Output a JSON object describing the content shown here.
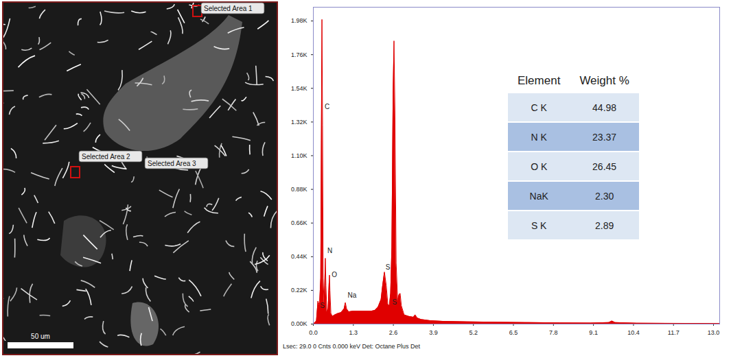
{
  "image": {
    "selected_areas": [
      "Selected Area 1",
      "Selected Area 2",
      "Selected Area 3"
    ],
    "scale_bar": "50 um"
  },
  "chart_data": {
    "type": "area",
    "color": "#e00000",
    "x": [
      0.0,
      0.1,
      0.15,
      0.2,
      0.24,
      0.26,
      0.28,
      0.3,
      0.32,
      0.35,
      0.37,
      0.39,
      0.41,
      0.44,
      0.48,
      0.51,
      0.525,
      0.54,
      0.57,
      0.62,
      0.7,
      0.8,
      0.9,
      1.0,
      1.04,
      1.08,
      1.15,
      1.3,
      1.5,
      1.7,
      1.9,
      2.0,
      2.1,
      2.2,
      2.25,
      2.31,
      2.37,
      2.42,
      2.47,
      2.51,
      2.55,
      2.59,
      2.62,
      2.65,
      2.69,
      2.74,
      2.78,
      2.82,
      2.86,
      2.95,
      3.1,
      3.25,
      3.31,
      3.37,
      3.5,
      3.8,
      4.2,
      5.0,
      6.0,
      7.0,
      8.0,
      9.0,
      9.6,
      9.7,
      9.8,
      10.5,
      11.5,
      12.5,
      13.2
    ],
    "values": [
      0,
      20,
      150,
      120,
      300,
      1200,
      1990,
      1300,
      300,
      120,
      250,
      430,
      250,
      80,
      100,
      260,
      320,
      220,
      70,
      50,
      60,
      70,
      75,
      100,
      140,
      100,
      80,
      85,
      85,
      85,
      85,
      90,
      110,
      160,
      250,
      340,
      250,
      130,
      120,
      200,
      500,
      1500,
      1850,
      1400,
      400,
      150,
      190,
      200,
      120,
      60,
      50,
      45,
      60,
      40,
      30,
      22,
      18,
      15,
      12,
      10,
      8,
      7,
      10,
      20,
      10,
      6,
      5,
      4,
      3
    ],
    "xlim": [
      0,
      13.2
    ],
    "xticks": [
      {
        "value": 0,
        "label": "0.0"
      },
      1.3,
      2.6,
      3.9,
      5.2,
      6.5,
      7.8,
      9.1,
      10.4,
      11.7,
      {
        "value": 13,
        "label": "13.0"
      }
    ],
    "ylim": [
      0,
      2070
    ],
    "yticks": [
      {
        "value": 0,
        "label": "0.00K"
      },
      {
        "value": 220,
        "label": "0.22K"
      },
      {
        "value": 440,
        "label": "0.44K"
      },
      {
        "value": 660,
        "label": "0.66K"
      },
      {
        "value": 880,
        "label": "0.88K"
      },
      {
        "value": 1100,
        "label": "1.10K"
      },
      {
        "value": 1320,
        "label": "1.32K"
      },
      {
        "value": 1540,
        "label": "1.54K"
      },
      {
        "value": 1760,
        "label": "1.76K"
      },
      {
        "value": 1980,
        "label": "1.98K"
      }
    ],
    "grid": false,
    "annotations": [
      {
        "text": "C",
        "x": 0.3,
        "y": 1420
      },
      {
        "text": "N",
        "x": 0.39,
        "y": 480
      },
      {
        "text": "O",
        "x": 0.53,
        "y": 320
      },
      {
        "text": "Na",
        "x": 1.05,
        "y": 185
      },
      {
        "text": "S",
        "x": 2.28,
        "y": 370
      },
      {
        "text": "S",
        "x": 2.5,
        "y": 140
      },
      {
        "text": "S",
        "x": 0.15,
        "y": 120
      }
    ]
  },
  "table": {
    "header": [
      "Element",
      "Weight %"
    ],
    "rows": [
      [
        "C K",
        "44.98"
      ],
      [
        "N K",
        "23.37"
      ],
      [
        "O K",
        "26.45"
      ],
      [
        "NaK",
        "2.30"
      ],
      [
        "S K",
        "2.89"
      ]
    ]
  },
  "footer": "Lsec: 29.0 0 Cnts 0.000 keV Det: Octane Plus Det"
}
